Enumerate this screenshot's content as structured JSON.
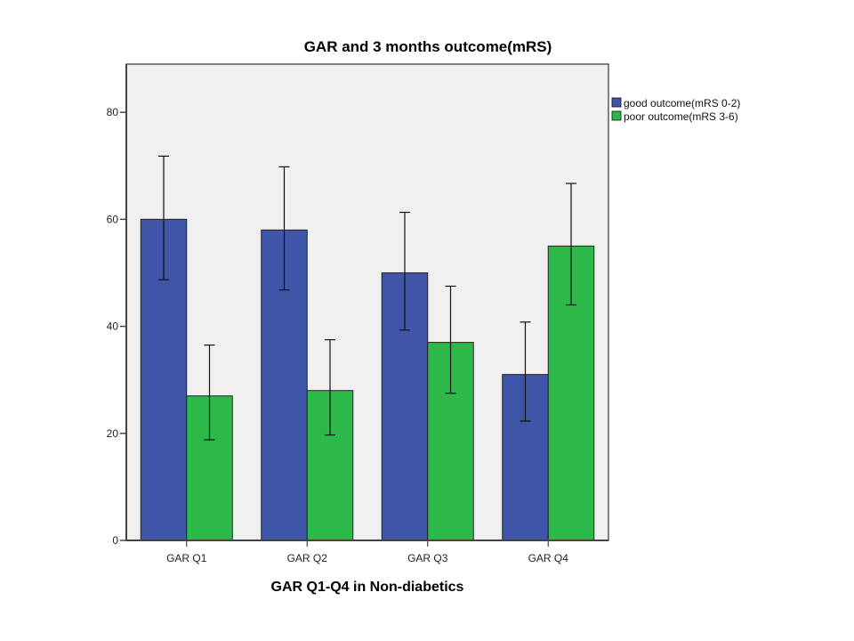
{
  "chart_data": {
    "type": "bar",
    "title": "GAR  and 3 months outcome(mRS)",
    "xlabel": "GAR Q1-Q4 in Non-diabetics",
    "ylabel": "",
    "categories": [
      "GAR Q1",
      "GAR Q2",
      "GAR Q3",
      "GAR Q4"
    ],
    "ylim": [
      0,
      89
    ],
    "yticks": [
      0,
      20,
      40,
      60,
      80
    ],
    "grid": false,
    "legend_position": "right",
    "series": [
      {
        "name": "good outcome(mRS 0-2)",
        "color": "#3f55a8",
        "values": [
          60,
          58,
          50,
          31
        ],
        "error_low": [
          48.7,
          46.8,
          39.3,
          22.3
        ],
        "error_high": [
          71.8,
          69.8,
          61.3,
          40.8
        ]
      },
      {
        "name": "poor outcome(mRS 3-6)",
        "color": "#2db84a",
        "values": [
          27,
          28,
          37,
          55
        ],
        "error_low": [
          18.8,
          19.7,
          27.5,
          44.0
        ],
        "error_high": [
          36.5,
          37.5,
          47.5,
          66.7
        ]
      }
    ],
    "plot_background": "#f0f0f0"
  }
}
